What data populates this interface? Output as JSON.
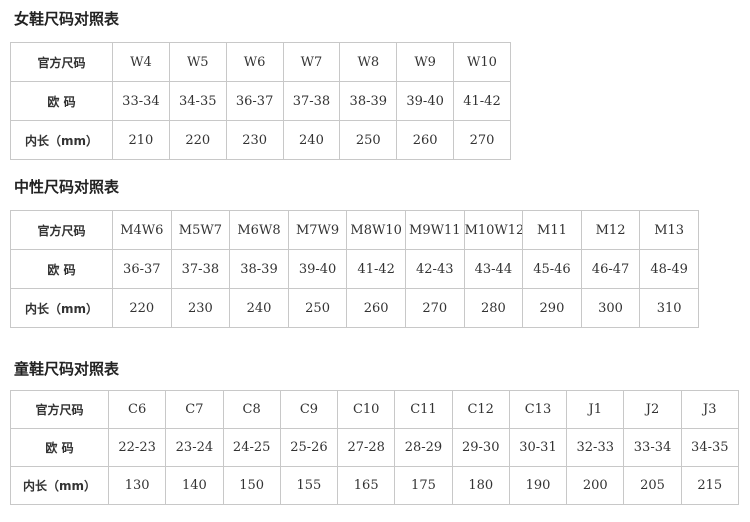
{
  "sections": [
    {
      "title": "女鞋尺码对照表",
      "rows": [
        [
          "官方尺码",
          "W4",
          "W5",
          "W6",
          "W7",
          "W8",
          "W9",
          "W10"
        ],
        [
          "欧 码",
          "33-34",
          "34-35",
          "36-37",
          "37-38",
          "38-39",
          "39-40",
          "41-42"
        ],
        [
          "内长（mm）",
          210,
          220,
          230,
          240,
          250,
          260,
          270
        ]
      ]
    },
    {
      "title": "中性尺码对照表",
      "rows": [
        [
          "官方尺码",
          "M4W6",
          "M5W7",
          "M6W8",
          "M7W9",
          "M8W10",
          "M9W11",
          "M10W12",
          "M11",
          "M12",
          "M13"
        ],
        [
          "欧 码",
          "36-37",
          "37-38",
          "38-39",
          "39-40",
          "41-42",
          "42-43",
          "43-44",
          "45-46",
          "46-47",
          "48-49"
        ],
        [
          "内长（mm）",
          220,
          230,
          240,
          250,
          260,
          270,
          280,
          290,
          300,
          310
        ]
      ]
    },
    {
      "title": "童鞋尺码对照表",
      "rows": [
        [
          "官方尺码",
          "C6",
          "C7",
          "C8",
          "C9",
          "C10",
          "C11",
          "C12",
          "C13",
          "J1",
          "J2",
          "J3"
        ],
        [
          "欧 码",
          "22-23",
          "23-24",
          "24-25",
          "25-26",
          "27-28",
          "28-29",
          "29-30",
          "30-31",
          "32-33",
          "33-34",
          "34-35"
        ],
        [
          "内长（mm）",
          130,
          140,
          150,
          155,
          165,
          175,
          180,
          190,
          200,
          205,
          215
        ]
      ]
    }
  ]
}
